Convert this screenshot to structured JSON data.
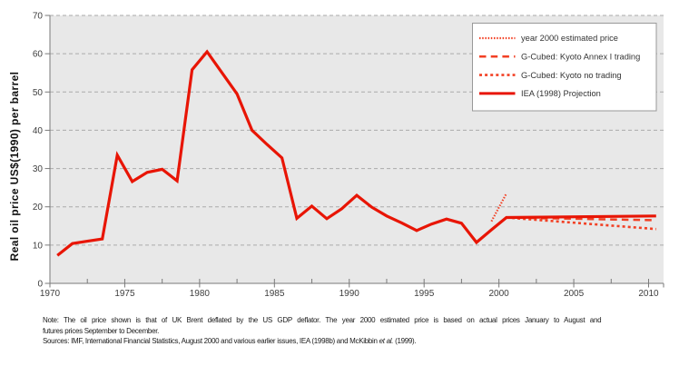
{
  "colors": {
    "plot_bg": "#e8e8e8",
    "grid": "#aaaaaa",
    "axis": "#7a7a7a",
    "tick_label": "#3d3d3d",
    "note_text": "#1a1a1a",
    "legend_bg": "#ffffff",
    "legend_border": "#999999",
    "legend_text": "#333333",
    "solid_red": "#e81505",
    "projection_red": "#f24024"
  },
  "chart_data": {
    "type": "line",
    "title": "",
    "xlabel": "",
    "ylabel": "Real oil price US$(1990) per barrel",
    "xlim": [
      1970,
      2011
    ],
    "ylim": [
      0,
      70
    ],
    "x_ticks": [
      1970,
      1975,
      1980,
      1985,
      1990,
      1995,
      2000,
      2005,
      2010
    ],
    "x_minor_ticks": [
      1972.5,
      1977.5,
      1982.5,
      1987.5,
      1992.5,
      1997.5,
      2002.5,
      2007.5
    ],
    "y_ticks": [
      0,
      10,
      20,
      30,
      40,
      50,
      60,
      70
    ],
    "grid": "horizontal dashed gridlines on gray plot area",
    "legend_position": "top-right",
    "x_unit": "decimal year; annual observations plotted at mid-year",
    "series": [
      {
        "name": "year 2000 estimated price",
        "style": "fine-dotted",
        "color": "#f24024",
        "width": 2.2,
        "dash": "1.5 1.7",
        "x": [
          1999.5,
          2000.5
        ],
        "y": [
          16.2,
          23.5
        ]
      },
      {
        "name": "G-Cubed: Kyoto Annex I trading",
        "style": "dashed",
        "color": "#f24024",
        "width": 2.5,
        "dash": "7.5 5.2",
        "x": [
          2000.5,
          2010.5
        ],
        "y": [
          17.2,
          16.5
        ]
      },
      {
        "name": "G-Cubed: Kyoto no trading",
        "style": "square-dotted",
        "color": "#f24024",
        "width": 2.6,
        "dash": "3 3.1",
        "x": [
          2000.5,
          2010.5
        ],
        "y": [
          17.2,
          14.2
        ]
      },
      {
        "name": "IEA (1998) Projection",
        "style": "solid",
        "color": "#e81505",
        "width": 3.2,
        "dash": null,
        "x": [
          1970.5,
          1971.5,
          1972.5,
          1973.5,
          1974.5,
          1975.5,
          1976.5,
          1977.5,
          1978.5,
          1979.5,
          1980.5,
          1981.5,
          1982.5,
          1983.5,
          1984.5,
          1985.5,
          1986.5,
          1987.5,
          1988.5,
          1989.5,
          1990.5,
          1991.5,
          1992.5,
          1993.5,
          1994.5,
          1995.5,
          1996.5,
          1997.5,
          1998.5,
          1999.5,
          2000.5,
          2010.5
        ],
        "y": [
          7.3,
          10.4,
          11.0,
          11.6,
          33.5,
          26.6,
          29.0,
          29.8,
          26.8,
          55.8,
          60.5,
          55.0,
          49.5,
          40.0,
          36.3,
          32.8,
          17.0,
          20.2,
          16.9,
          19.5,
          23.0,
          19.9,
          17.6,
          15.8,
          13.8,
          15.5,
          16.8,
          15.7,
          10.7,
          14.0,
          17.2,
          17.6
        ]
      }
    ]
  },
  "notes": {
    "line1": "Note: The oil price shown is that of UK Brent deflated by the US GDP deflator. The year 2000 estimated price is based on actual prices January to August and",
    "line2": "futures prices September to December.",
    "sources_prefix": "Sources: IMF, International Financial Statistics, August 2000 and various earlier issues, IEA (1998b) and McKibbin ",
    "sources_italic": "et al.",
    "sources_suffix": " (1999)."
  }
}
